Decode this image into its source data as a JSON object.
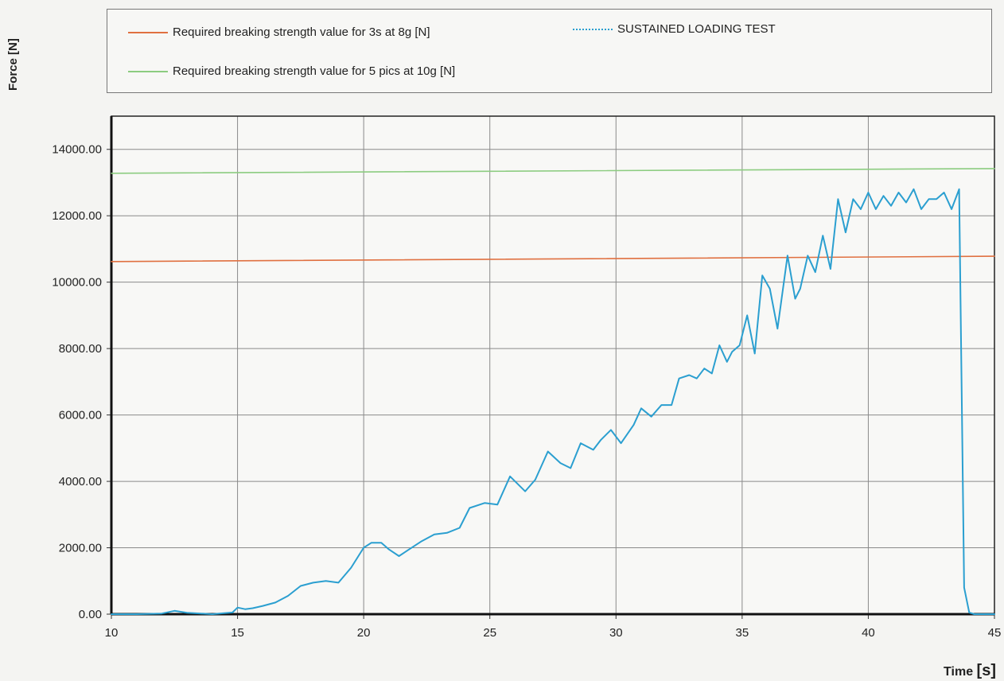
{
  "chart_data": {
    "type": "line",
    "xlabel": "Time",
    "xunit": "[s]",
    "ylabel": "Force [N]",
    "xlim": [
      10,
      45
    ],
    "ylim": [
      0,
      15000
    ],
    "x_ticks": [
      10,
      15,
      20,
      25,
      30,
      35,
      40,
      45
    ],
    "x_tick_labels": [
      "10",
      "15",
      "20",
      "25",
      "30",
      "35",
      "40",
      "45"
    ],
    "y_ticks": [
      0,
      2000,
      4000,
      6000,
      8000,
      10000,
      12000,
      14000
    ],
    "y_tick_labels": [
      "0.00",
      "2000.00",
      "4000.00",
      "6000.00",
      "8000.00",
      "10000.00",
      "12000.00",
      "14000.00"
    ],
    "grid": true,
    "legend_position": "top",
    "series": [
      {
        "name": "Required breaking strength value for 3s at 8g [N]",
        "color": "#e07040",
        "x": [
          10,
          45
        ],
        "y": [
          10620,
          10780
        ]
      },
      {
        "name": "Required breaking strength value for 5 pics at 10g [N]",
        "color": "#8ccc80",
        "x": [
          10,
          45
        ],
        "y": [
          13280,
          13420
        ]
      },
      {
        "name": "SUSTAINED LOADING TEST",
        "color": "#2b9fd0",
        "x": [
          10,
          11,
          12,
          12.5,
          13,
          14,
          14.8,
          15,
          15.3,
          15.6,
          16,
          16.5,
          17,
          17.5,
          18,
          18.5,
          19,
          19.5,
          20,
          20.3,
          20.7,
          21,
          21.4,
          21.8,
          22.3,
          22.8,
          23.3,
          23.8,
          24.2,
          24.8,
          25.3,
          25.8,
          26.4,
          26.8,
          27.3,
          27.8,
          28.2,
          28.6,
          29.1,
          29.4,
          29.8,
          30.2,
          30.7,
          31,
          31.4,
          31.8,
          32.2,
          32.5,
          32.9,
          33.2,
          33.5,
          33.8,
          34.1,
          34.4,
          34.6,
          34.9,
          35.2,
          35.5,
          35.8,
          36.1,
          36.4,
          36.8,
          37.1,
          37.3,
          37.6,
          37.9,
          38.2,
          38.5,
          38.8,
          39.1,
          39.4,
          39.7,
          40.0,
          40.3,
          40.6,
          40.9,
          41.2,
          41.5,
          41.8,
          42.1,
          42.4,
          42.7,
          43.0,
          43.3,
          43.6,
          43.8,
          44.0,
          44.2,
          44.4,
          45
        ],
        "y": [
          0,
          0,
          20,
          100,
          40,
          0,
          50,
          200,
          150,
          180,
          250,
          350,
          550,
          850,
          950,
          1000,
          950,
          1400,
          2000,
          2150,
          2150,
          1950,
          1750,
          1950,
          2200,
          2400,
          2450,
          2600,
          3200,
          3350,
          3300,
          4150,
          3700,
          4050,
          4900,
          4550,
          4400,
          5150,
          4950,
          5250,
          5550,
          5150,
          5700,
          6200,
          5950,
          6300,
          6300,
          7100,
          7200,
          7100,
          7400,
          7250,
          8100,
          7600,
          7900,
          8100,
          9000,
          7850,
          10200,
          9800,
          8600,
          10800,
          9500,
          9800,
          10800,
          10300,
          11400,
          10400,
          12500,
          11500,
          12500,
          12200,
          12700,
          12200,
          12600,
          12300,
          12700,
          12400,
          12800,
          12200,
          12500,
          12500,
          12700,
          12200,
          12800,
          800,
          50,
          0,
          0,
          0
        ]
      }
    ]
  }
}
